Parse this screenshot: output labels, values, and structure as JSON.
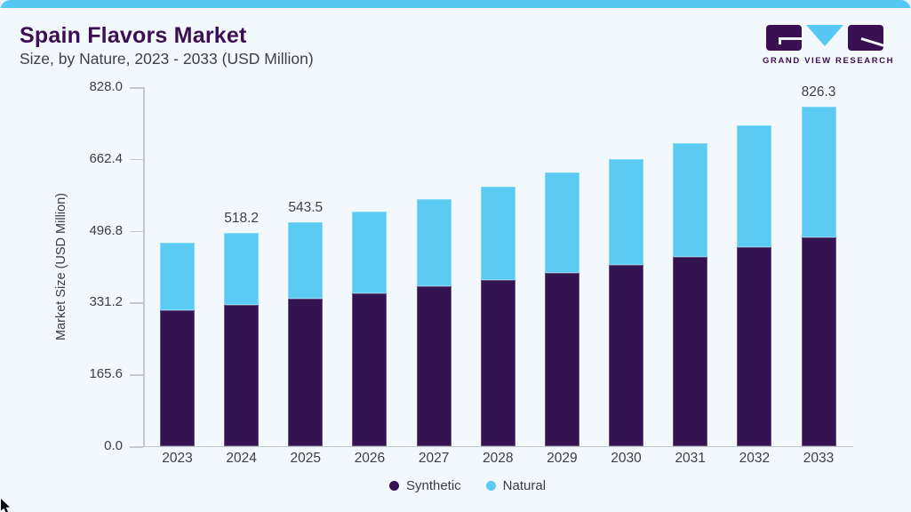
{
  "header": {
    "title": "Spain Flavors Market",
    "subtitle": "Size, by Nature, 2023 - 2033 (USD Million)",
    "logo_text": "GRAND VIEW RESEARCH"
  },
  "colors": {
    "accent_blue": "#57c8f4",
    "brand_purple": "#3b1053",
    "synthetic": "#331450",
    "natural": "#5bcbf4"
  },
  "chart_data": {
    "type": "bar",
    "stacked": true,
    "title": "Spain Flavors Market Size, by Nature, 2023 - 2033 (USD Million)",
    "ylabel": "Market Size (USD Million)",
    "xlabel": "",
    "categories": [
      "2023",
      "2024",
      "2025",
      "2026",
      "2027",
      "2028",
      "2029",
      "2030",
      "2031",
      "2032",
      "2033"
    ],
    "series": [
      {
        "name": "Synthetic",
        "color": "#331450",
        "values": [
          331.5,
          343.0,
          358.0,
          372.5,
          389.0,
          405.0,
          421.0,
          440.0,
          461.0,
          483.0,
          507.0
        ]
      },
      {
        "name": "Natural",
        "color": "#5bcbf4",
        "values": [
          163.5,
          175.2,
          185.5,
          198.2,
          210.7,
          227.0,
          243.6,
          257.7,
          275.7,
          297.0,
          319.3
        ]
      }
    ],
    "totals": [
      495.0,
      518.2,
      543.5,
      570.7,
      599.7,
      632.0,
      664.6,
      697.7,
      736.7,
      780.0,
      826.3
    ],
    "bar_labels": [
      "",
      "518.2",
      "543.5",
      "",
      "",
      "",
      "",
      "",
      "",
      "",
      "826.3"
    ],
    "y_tick_labels": [
      "828.0",
      "662.4",
      "496.8",
      "331.2",
      "165.6",
      "0.0"
    ],
    "ylim": [
      0,
      828
    ],
    "grid": false,
    "legend_position": "bottom",
    "bar_scale_max": 873
  }
}
